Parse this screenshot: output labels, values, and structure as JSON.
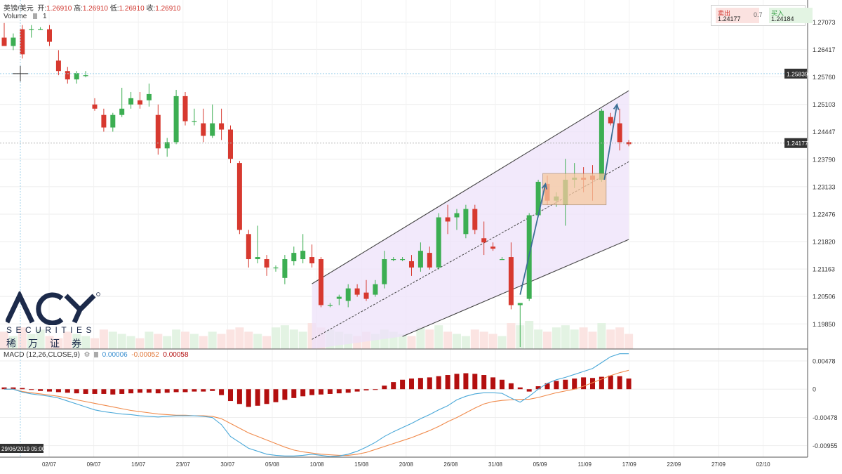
{
  "header": {
    "symbol": "英镑/美元",
    "open_label": "开:",
    "open_value": "1.26910",
    "high_label": "高:",
    "high_value": "1.26910",
    "low_label": "低:",
    "low_value": "1.26910",
    "close_label": "收:",
    "close_value": "1.26910",
    "volume_label": "Volume",
    "volume_value": "1"
  },
  "quote": {
    "sell_label": "卖出",
    "sell_value": "1.24177",
    "spread": "0.7",
    "buy_label": "买入",
    "buy_value": "1.24184"
  },
  "logo": {
    "brand": "ACY",
    "line1": "SECURITIES",
    "line2": "稀万证券"
  },
  "colors": {
    "up": "#3cae52",
    "down": "#d7392f",
    "macd_line": "#4aa8d8",
    "signal_line": "#f08a4b",
    "histogram": "#b30f0f",
    "channel_fill": "#ede2fa"
  },
  "chart_data": [
    {
      "type": "candlestick",
      "title": "",
      "ylim": [
        1.1925,
        1.276
      ],
      "y_ticks": [
        "1.27073",
        "1.26417",
        "1.25760",
        "1.25103",
        "1.24447",
        "1.23790",
        "1.23133",
        "1.22476",
        "1.21820",
        "1.21163",
        "1.20506",
        "1.19850"
      ],
      "price_tags": [
        "1.25839",
        "1.24177"
      ],
      "x_ticks": [
        "02/07",
        "09/07",
        "16/07",
        "23/07",
        "30/07",
        "05/08",
        "10/08",
        "15/08",
        "20/08",
        "26/08",
        "31/08",
        "05/09",
        "11/09",
        "17/09",
        "22/09",
        "27/09",
        "02/10"
      ],
      "crosshair_label": "29/06/2019 05:00",
      "ohlc": [
        [
          1.267,
          1.2705,
          1.2655,
          1.265
        ],
        [
          1.265,
          1.268,
          1.264,
          1.267
        ],
        [
          1.269,
          1.27,
          1.262,
          1.263
        ],
        [
          1.269,
          1.27,
          1.267,
          1.269
        ],
        [
          1.269,
          1.2695,
          1.269,
          1.269
        ],
        [
          1.269,
          1.27,
          1.265,
          1.266
        ],
        [
          1.2615,
          1.264,
          1.258,
          1.259
        ],
        [
          1.259,
          1.26,
          1.256,
          1.257
        ],
        [
          1.257,
          1.259,
          1.256,
          1.2585
        ],
        [
          1.258,
          1.259,
          1.2575,
          1.258
        ],
        [
          1.251,
          1.2525,
          1.2495,
          1.25
        ],
        [
          1.2485,
          1.25,
          1.2445,
          1.2455
        ],
        [
          1.2455,
          1.249,
          1.2445,
          1.2485
        ],
        [
          1.2485,
          1.255,
          1.248,
          1.25
        ],
        [
          1.251,
          1.254,
          1.25,
          1.2525
        ],
        [
          1.252,
          1.254,
          1.25,
          1.251
        ],
        [
          1.252,
          1.256,
          1.2505,
          1.2535
        ],
        [
          1.2485,
          1.251,
          1.239,
          1.2405
        ],
        [
          1.2405,
          1.243,
          1.2385,
          1.242
        ],
        [
          1.242,
          1.2545,
          1.2415,
          1.253
        ],
        [
          1.253,
          1.254,
          1.246,
          1.247
        ],
        [
          1.247,
          1.25,
          1.246,
          1.247
        ],
        [
          1.2465,
          1.25,
          1.242,
          1.2435
        ],
        [
          1.2435,
          1.251,
          1.243,
          1.2465
        ],
        [
          1.2465,
          1.25,
          1.2425,
          1.245
        ],
        [
          1.245,
          1.246,
          1.237,
          1.238
        ],
        [
          1.237,
          1.2375,
          1.22,
          1.221
        ],
        [
          1.22,
          1.221,
          1.212,
          1.214
        ],
        [
          1.214,
          1.222,
          1.213,
          1.2145
        ],
        [
          1.214,
          1.215,
          1.21,
          1.212
        ],
        [
          1.212,
          1.2125,
          1.211,
          1.212
        ],
        [
          1.2095,
          1.215,
          1.208,
          1.214
        ],
        [
          1.2135,
          1.217,
          1.2125,
          1.2155
        ],
        [
          1.214,
          1.22,
          1.213,
          1.216
        ],
        [
          1.2145,
          1.2175,
          1.212,
          1.213
        ],
        [
          1.214,
          1.2145,
          1.2025,
          1.203
        ],
        [
          1.203,
          1.2035,
          1.2025,
          1.203
        ],
        [
          1.2045,
          1.2055,
          1.203,
          1.205
        ],
        [
          1.204,
          1.208,
          1.2025,
          1.207
        ],
        [
          1.207,
          1.208,
          1.205,
          1.2055
        ],
        [
          1.206,
          1.209,
          1.204,
          1.2045
        ],
        [
          1.2055,
          1.209,
          1.205,
          1.208
        ],
        [
          1.208,
          1.216,
          1.207,
          1.214
        ],
        [
          1.214,
          1.2145,
          1.2135,
          1.214
        ],
        [
          1.214,
          1.2145,
          1.2135,
          1.214
        ],
        [
          1.2135,
          1.215,
          1.21,
          1.212
        ],
        [
          1.212,
          1.218,
          1.211,
          1.216
        ],
        [
          1.2155,
          1.217,
          1.2115,
          1.212
        ],
        [
          1.212,
          1.225,
          1.2115,
          1.224
        ],
        [
          1.224,
          1.227,
          1.22,
          1.223
        ],
        [
          1.224,
          1.226,
          1.221,
          1.225
        ],
        [
          1.22,
          1.227,
          1.219,
          1.226
        ],
        [
          1.226,
          1.227,
          1.22,
          1.221
        ],
        [
          1.219,
          1.223,
          1.215,
          1.218
        ],
        [
          1.217,
          1.218,
          1.216,
          1.2165
        ],
        [
          1.214,
          1.2145,
          1.214,
          1.214
        ],
        [
          1.2145,
          1.218,
          1.202,
          1.203
        ],
        [
          1.203,
          1.2035,
          1.193,
          1.2035
        ],
        [
          1.2045,
          1.225,
          1.204,
          1.2245
        ],
        [
          1.2245,
          1.233,
          1.224,
          1.2325
        ],
        [
          1.232,
          1.234,
          1.227,
          1.228
        ],
        [
          1.228,
          1.23,
          1.2265,
          1.229
        ],
        [
          1.227,
          1.238,
          1.222,
          1.233
        ],
        [
          1.233,
          1.237,
          1.231,
          1.2335
        ],
        [
          1.2335,
          1.236,
          1.23,
          1.233
        ],
        [
          1.234,
          1.2365,
          1.228,
          1.233
        ],
        [
          1.233,
          1.25,
          1.2325,
          1.2495
        ],
        [
          1.248,
          1.249,
          1.246,
          1.2465
        ],
        [
          1.2465,
          1.25,
          1.24,
          1.242
        ],
        [
          1.242,
          1.2425,
          1.241,
          1.2415
        ]
      ],
      "volume": [
        8,
        6,
        10,
        7,
        9,
        6,
        5,
        8,
        7,
        6,
        5,
        9,
        8,
        7,
        6,
        5,
        8,
        7,
        6,
        9,
        8,
        7,
        6,
        8,
        7,
        9,
        10,
        8,
        7,
        6,
        10,
        11,
        9,
        8,
        12,
        10,
        9,
        8,
        7,
        6,
        8,
        7,
        9,
        8,
        7,
        6,
        10,
        9,
        11,
        8,
        7,
        6,
        9,
        8,
        7,
        6,
        12,
        11,
        13,
        9,
        8,
        10,
        11,
        9,
        10,
        8,
        12,
        9,
        10,
        7
      ],
      "channel": {
        "upper": [
          [
            1.2081,
            34
          ],
          [
            1.2543,
            69
          ]
        ],
        "middle": [
          [
            1.1948,
            34
          ],
          [
            1.2373,
            69
          ]
        ],
        "lower": [
          [
            1.1955,
            44
          ],
          [
            1.2187,
            69
          ]
        ]
      },
      "highlight_box": {
        "x": [
          59.5,
          66.5
        ],
        "y": [
          1.227,
          1.2345
        ]
      },
      "arrows": [
        [
          [
            57.0,
            1.2055
          ],
          [
            59.8,
            1.232
          ]
        ],
        [
          [
            66.3,
            1.233
          ],
          [
            67.7,
            1.251
          ]
        ]
      ]
    },
    {
      "type": "macd",
      "title": "MACD (12,26,CLOSE,9)",
      "legend_values": [
        "0.00006",
        "-0.00052",
        "0.00058"
      ],
      "ylim": [
        -0.0115,
        0.0068
      ],
      "y_ticks": [
        "0.00478",
        "0",
        "-0.00478",
        "-0.00955"
      ],
      "macd": [
        0.0,
        0.0,
        -0.0005,
        -0.0008,
        -0.001,
        -0.0012,
        -0.0015,
        -0.002,
        -0.0025,
        -0.003,
        -0.0035,
        -0.0038,
        -0.004,
        -0.0042,
        -0.0043,
        -0.0045,
        -0.0046,
        -0.0047,
        -0.0046,
        -0.0045,
        -0.0045,
        -0.0045,
        -0.0046,
        -0.0048,
        -0.006,
        -0.008,
        -0.009,
        -0.01,
        -0.0105,
        -0.011,
        -0.0112,
        -0.0113,
        -0.0113,
        -0.0112,
        -0.011,
        -0.0112,
        -0.0114,
        -0.0113,
        -0.011,
        -0.0105,
        -0.0098,
        -0.009,
        -0.008,
        -0.0072,
        -0.0065,
        -0.0058,
        -0.005,
        -0.0043,
        -0.0035,
        -0.0028,
        -0.0018,
        -0.0012,
        -0.0008,
        -0.0006,
        -0.0006,
        -0.0007,
        -0.0015,
        -0.0022,
        -0.0012,
        0.0,
        0.001,
        0.0016,
        0.002,
        0.0025,
        0.003,
        0.0035,
        0.0045,
        0.0055,
        0.006,
        0.006
      ],
      "signal": [
        0.0,
        0.0,
        -0.0004,
        -0.0006,
        -0.0008,
        -0.001,
        -0.0012,
        -0.0015,
        -0.0018,
        -0.0021,
        -0.0024,
        -0.0027,
        -0.003,
        -0.0033,
        -0.0036,
        -0.0038,
        -0.004,
        -0.0042,
        -0.0043,
        -0.0044,
        -0.0044,
        -0.0045,
        -0.0045,
        -0.0046,
        -0.005,
        -0.0058,
        -0.0066,
        -0.0074,
        -0.008,
        -0.0086,
        -0.0092,
        -0.0098,
        -0.0103,
        -0.0106,
        -0.0108,
        -0.011,
        -0.0111,
        -0.0112,
        -0.0112,
        -0.011,
        -0.0107,
        -0.0102,
        -0.0097,
        -0.0092,
        -0.0087,
        -0.0082,
        -0.0076,
        -0.007,
        -0.0063,
        -0.0055,
        -0.0048,
        -0.004,
        -0.0032,
        -0.0025,
        -0.0021,
        -0.0019,
        -0.0018,
        -0.0017,
        -0.0017,
        -0.0014,
        -0.001,
        -0.0006,
        -0.0003,
        0.0,
        0.0005,
        0.0011,
        0.0017,
        0.0023,
        0.0028,
        0.0032
      ],
      "histogram": [
        0.0003,
        0.0003,
        0.0002,
        0.0,
        -0.0003,
        -0.0004,
        -0.0005,
        -0.0006,
        -0.0007,
        -0.0008,
        -0.0008,
        -0.0008,
        -0.0009,
        -0.0008,
        -0.0007,
        -0.0006,
        -0.0006,
        -0.0007,
        -0.0006,
        -0.0005,
        -0.0005,
        -0.0004,
        -0.0004,
        -0.0003,
        -0.001,
        -0.002,
        -0.0025,
        -0.003,
        -0.0028,
        -0.0025,
        -0.0022,
        -0.0018,
        -0.0015,
        -0.0012,
        -0.001,
        -0.0009,
        -0.0008,
        -0.0007,
        -0.0006,
        -0.0004,
        -0.0002,
        0.0,
        0.0006,
        0.0012,
        0.0016,
        0.0018,
        0.0019,
        0.002,
        0.0022,
        0.0024,
        0.0026,
        0.0027,
        0.0026,
        0.0024,
        0.002,
        0.0016,
        0.001,
        0.0003,
        -0.0004,
        0.0005,
        0.001,
        0.0014,
        0.0016,
        0.0018,
        0.002,
        0.0019,
        0.0021,
        0.0023,
        0.0022,
        0.0018
      ]
    }
  ]
}
